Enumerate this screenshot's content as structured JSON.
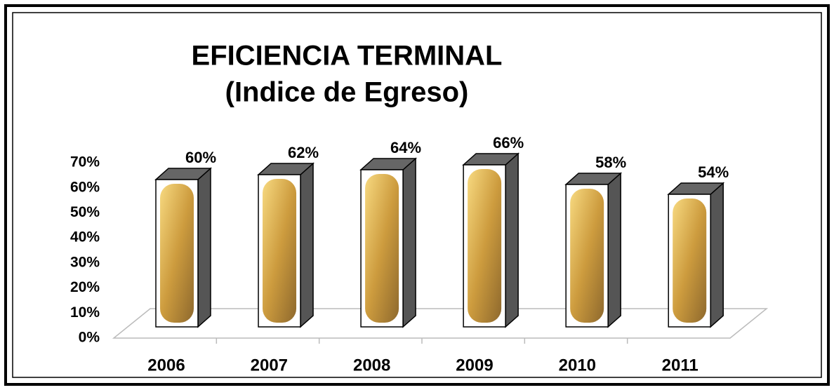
{
  "chart_data": {
    "type": "bar3d",
    "title": "EFICIENCIA TERMINAL",
    "subtitle": "(Indice de Egreso)",
    "categories": [
      "2006",
      "2007",
      "2008",
      "2009",
      "2010",
      "2011"
    ],
    "values": [
      60,
      62,
      64,
      66,
      58,
      54
    ],
    "value_labels": [
      "60%",
      "62%",
      "64%",
      "66%",
      "58%",
      "54%"
    ],
    "ylim": [
      0,
      70
    ],
    "yticks": [
      {
        "value": 0,
        "label": "0%"
      },
      {
        "value": 10,
        "label": "10%"
      },
      {
        "value": 20,
        "label": "20%"
      },
      {
        "value": 30,
        "label": "30%"
      },
      {
        "value": 40,
        "label": "40%"
      },
      {
        "value": 50,
        "label": "50%"
      },
      {
        "value": 60,
        "label": "60%"
      },
      {
        "value": 70,
        "label": "70%"
      }
    ],
    "color": "#555555"
  }
}
